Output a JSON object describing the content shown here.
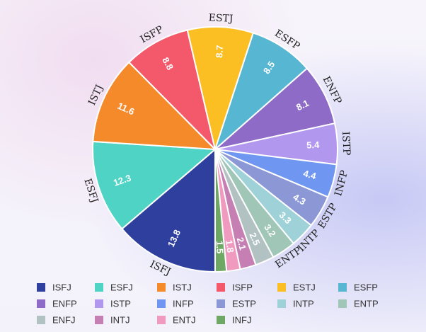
{
  "chart_data": {
    "type": "pie",
    "categories": [
      "ISFJ",
      "ESFJ",
      "ISTJ",
      "ISFP",
      "ESTJ",
      "ESFP",
      "ENFP",
      "ISTP",
      "INFP",
      "ESTP",
      "INTP",
      "ENTP",
      "ENFJ",
      "INTJ",
      "ENTJ",
      "INFJ"
    ],
    "slice_labels": [
      "ISFJ",
      "ESFJ",
      "ISTJ",
      "ISFP",
      "ESTJ",
      "ESFP",
      "ENFP",
      "ISTP",
      "INFP",
      "ESTP",
      "INTP",
      "ENTP",
      "",
      "",
      "",
      ""
    ],
    "values": [
      13.8,
      12.3,
      11.6,
      8.8,
      8.7,
      8.5,
      8.1,
      5.4,
      4.4,
      4.3,
      3.3,
      3.2,
      2.5,
      2.1,
      1.8,
      1.5
    ],
    "value_labels": [
      "13.8",
      "12.3",
      "11.6",
      "8.8",
      "8.7",
      "8.5",
      "8.1",
      "5.4",
      "4.4",
      "4.3",
      "3.3",
      "3.2",
      "2.5",
      "2.1",
      "1.8",
      "1.5"
    ],
    "colors": [
      "#2f3f9e",
      "#4fd3c4",
      "#f58a2a",
      "#f3586b",
      "#fbbf24",
      "#57b6d2",
      "#8e6bc7",
      "#b297ef",
      "#6f96f0",
      "#8c97d6",
      "#9fd2d8",
      "#9fc6b6",
      "#b2c2c2",
      "#c67fb3",
      "#f09abf",
      "#6fa864"
    ],
    "start_angle_deg": 180,
    "direction": "clockwise",
    "legend_position": "bottom",
    "title": ""
  }
}
